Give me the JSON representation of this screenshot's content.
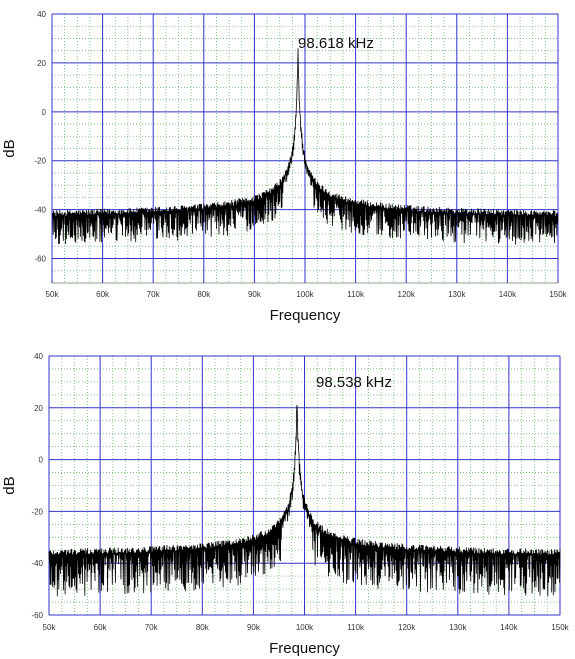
{
  "chart_data": [
    {
      "type": "line",
      "xlabel": "Frequency",
      "ylabel": "dB",
      "annotation": "98.618 kHz",
      "peak_freq_khz": 98.618,
      "peak_db": 26,
      "baseline_db": -46,
      "noise_db": 12,
      "xlim": [
        50,
        150
      ],
      "ylim": [
        -70,
        40
      ],
      "grid": true,
      "yticks": [
        -60,
        -40,
        -20,
        0,
        20,
        40
      ],
      "ytick_labels": [
        "-60",
        "-40",
        "-20",
        "0",
        "20",
        "40"
      ],
      "xticks": [
        50,
        60,
        70,
        80,
        90,
        100,
        110,
        120,
        130,
        140,
        150
      ],
      "xtick_labels": [
        "50k",
        "60k",
        "70k",
        "80k",
        "90k",
        "100k",
        "110k",
        "120k",
        "130k",
        "140k",
        "150k"
      ],
      "colors": {
        "major_grid": "#3333cc",
        "minor_grid": "#66bb66",
        "trace": "#000000",
        "frame": "#999999"
      }
    },
    {
      "type": "line",
      "xlabel": "Frequency",
      "ylabel": "dB",
      "annotation": "98.538 kHz",
      "peak_freq_khz": 98.538,
      "peak_db": 25,
      "baseline_db": -40,
      "noise_db": 16,
      "xlim": [
        50,
        150
      ],
      "ylim": [
        -60,
        40
      ],
      "grid": true,
      "yticks": [
        -60,
        -40,
        -20,
        0,
        20,
        40
      ],
      "ytick_labels": [
        "-60",
        "-40",
        "-20",
        "0",
        "20",
        "40"
      ],
      "xticks": [
        50,
        60,
        70,
        80,
        90,
        100,
        110,
        120,
        130,
        140,
        150
      ],
      "xtick_labels": [
        "50k",
        "60k",
        "70k",
        "80k",
        "90k",
        "100k",
        "110k",
        "120k",
        "130k",
        "140k",
        "150k"
      ],
      "colors": {
        "major_grid": "#3333cc",
        "minor_grid": "#66bb66",
        "trace": "#000000",
        "frame": "#999999"
      }
    }
  ]
}
